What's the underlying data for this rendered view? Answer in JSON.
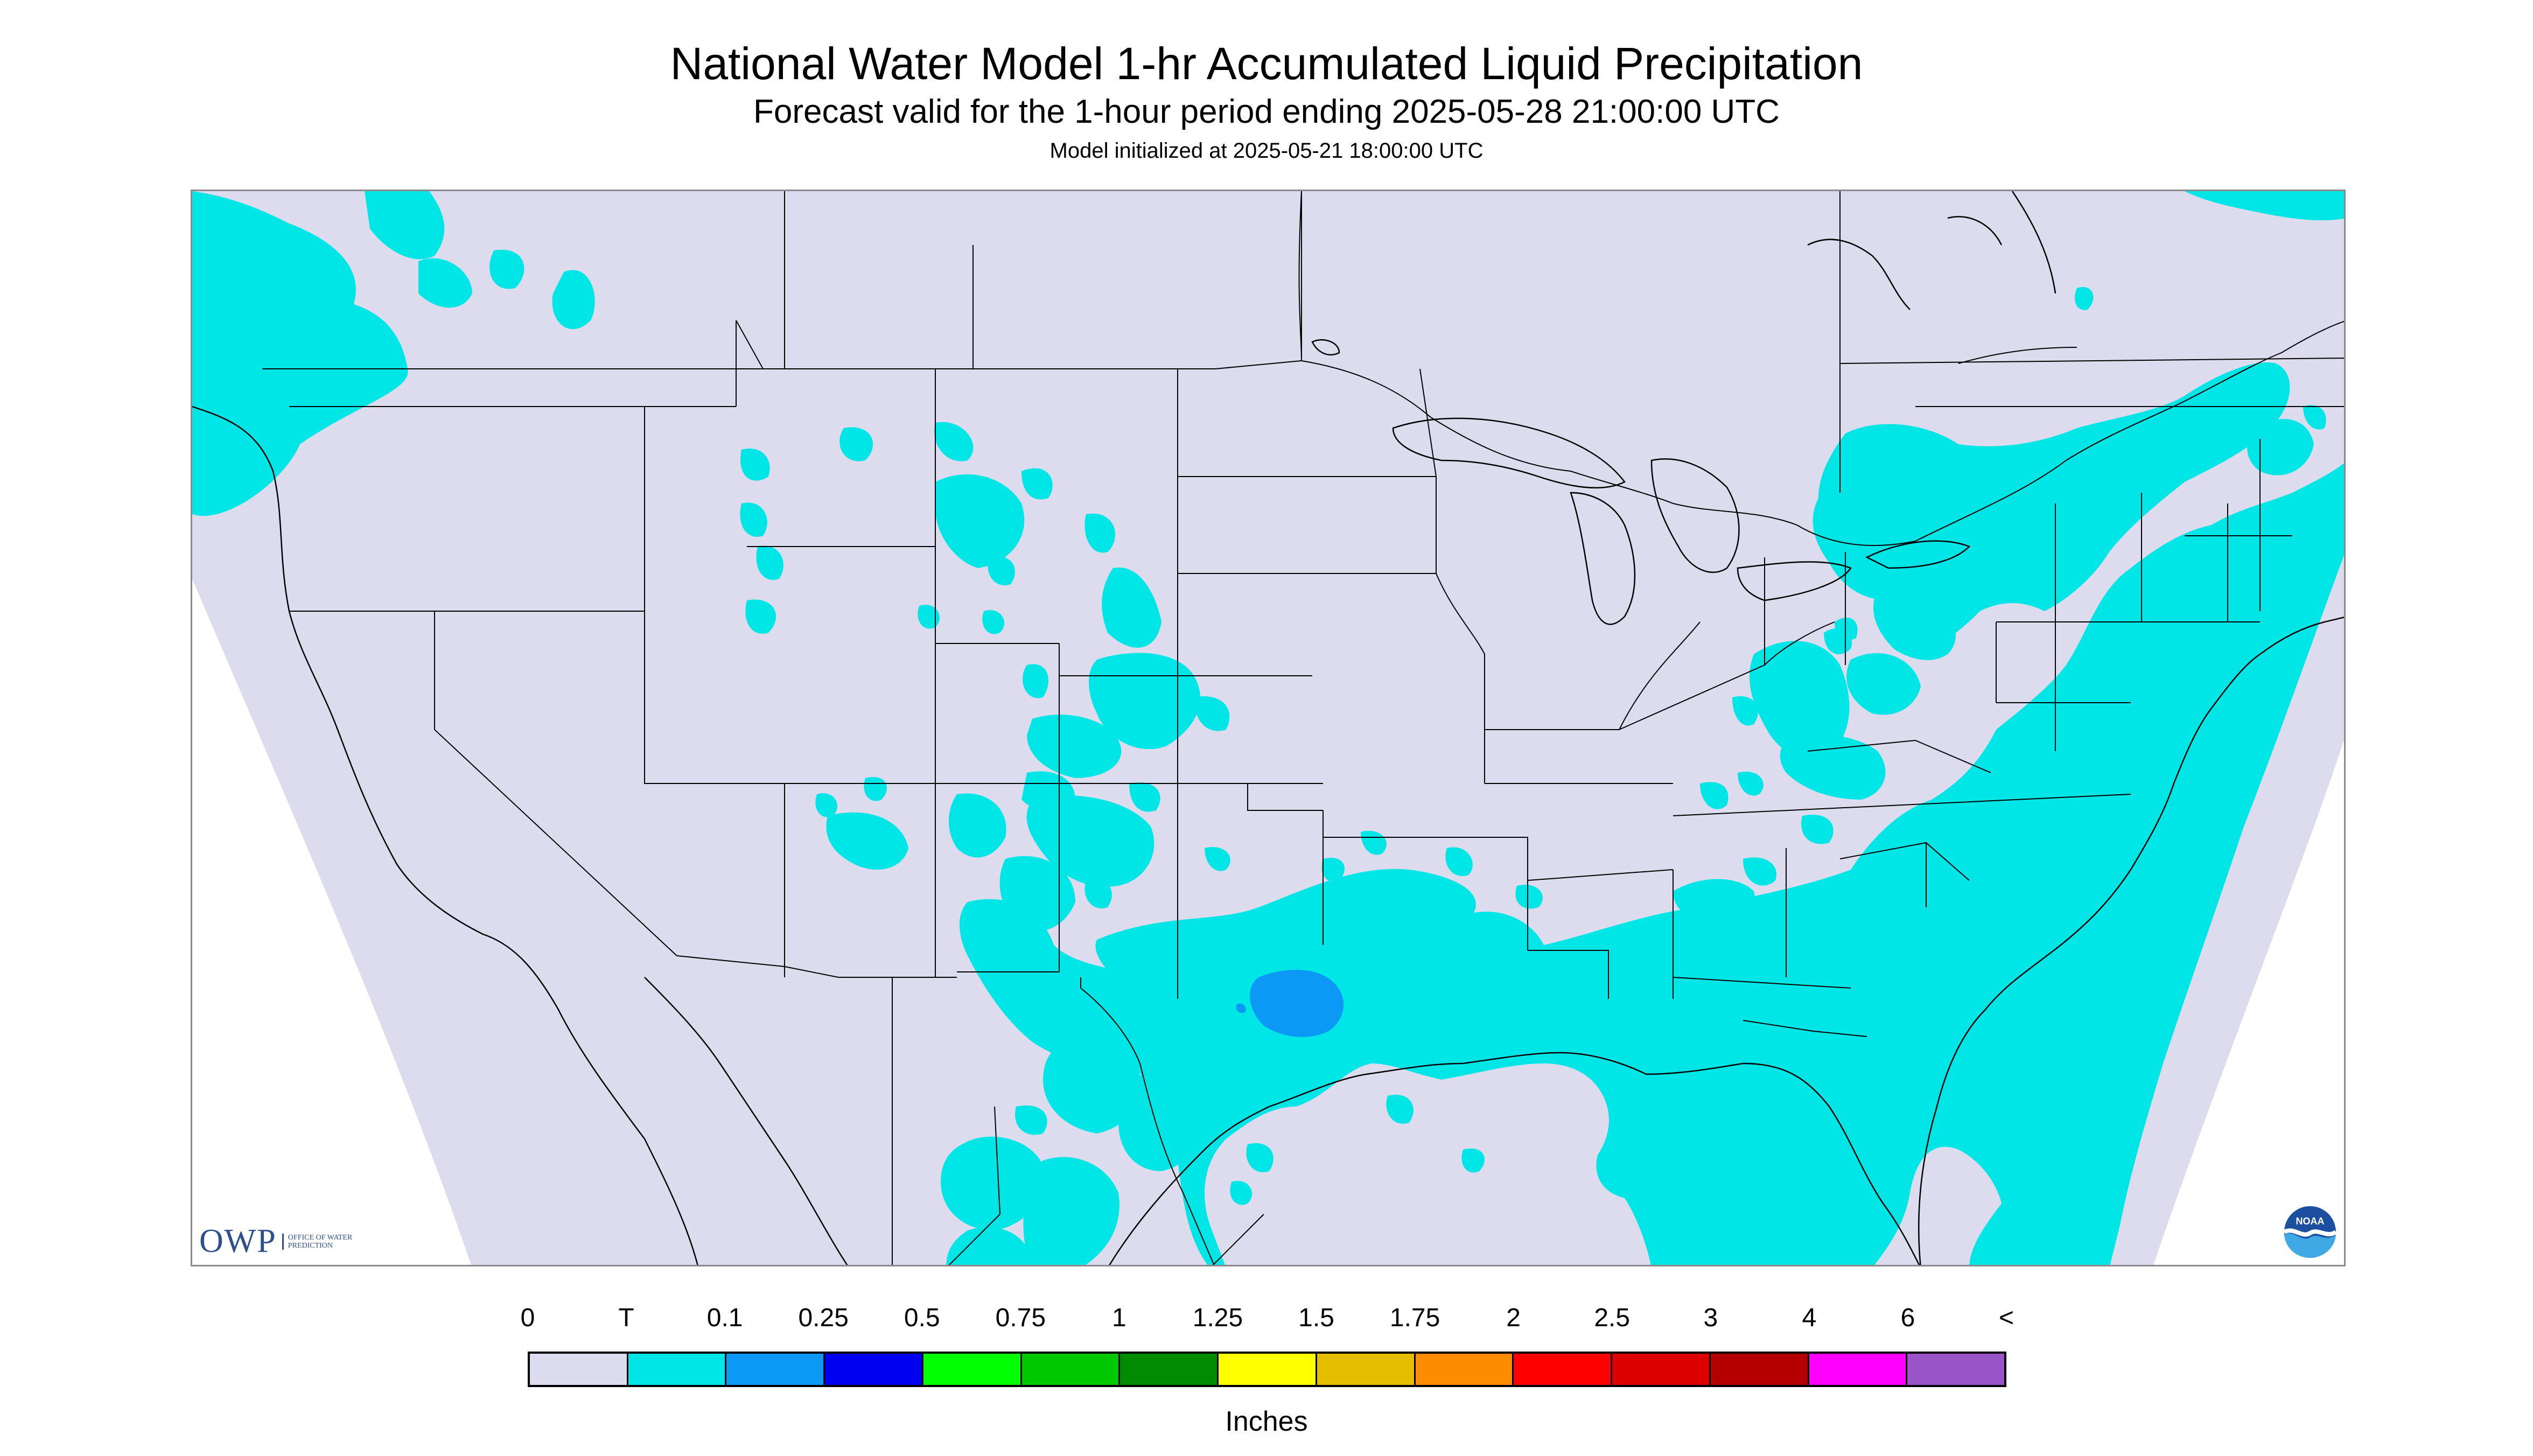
{
  "title": "National Water Model 1-hr Accumulated Liquid Precipitation",
  "subtitle": "Forecast valid for the 1-hour period ending 2025-05-28 21:00:00 UTC",
  "init_text": "Model initialized at 2025-05-21 18:00:00 UTC",
  "colors": {
    "no_precip": "#dcdcee",
    "trace": "#00e6e6",
    "light": "#0b99f5",
    "border": "#000000",
    "frame": "#8a8a8a"
  },
  "logos": {
    "owp_mark": "OWP",
    "owp_text": "OFFICE OF WATER PREDICTION",
    "noaa_text": "NOAA"
  },
  "legend": {
    "labels": [
      "0",
      "T",
      "0.1",
      "0.25",
      "0.5",
      "0.75",
      "1",
      "1.25",
      "1.5",
      "1.75",
      "2",
      "2.5",
      "3",
      "4",
      "6",
      "<"
    ],
    "colors": [
      "#dcdcee",
      "#00e6e6",
      "#0b99f5",
      "#0000f0",
      "#00ff00",
      "#00c800",
      "#008c00",
      "#ffff00",
      "#e6be00",
      "#ff8c00",
      "#ff0000",
      "#dc0000",
      "#b40000",
      "#ff00ff",
      "#9955c8"
    ],
    "units": "Inches"
  }
}
